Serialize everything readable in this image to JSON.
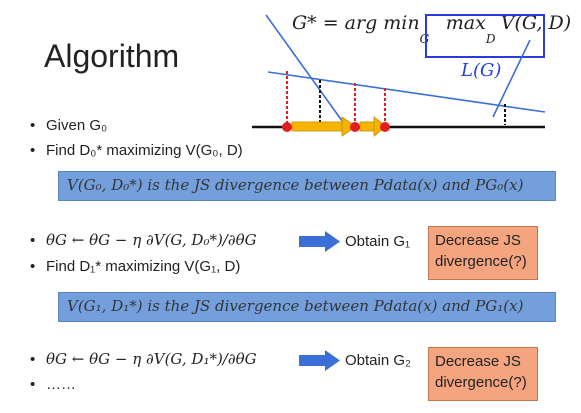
{
  "title": "Algorithm",
  "formula": {
    "left": "G* = arg min",
    "min_sub": "G",
    "max": "max",
    "max_sub": "D",
    "right": "V(G, D)"
  },
  "lg_label": "L(G)",
  "bullets": {
    "b1": "Given G₀",
    "b2": "Find D₀* maximizing V(G₀, D)",
    "b3": "θG ← θG − η ∂V(G, D₀*)/∂θG",
    "b3_result": "Obtain G₁",
    "b4": "Find D₁* maximizing V(G₁, D)",
    "b5": "θG ← θG − η ∂V(G, D₁*)/∂θG",
    "b5_result": "Obtain G₂",
    "b6": "……"
  },
  "notes": {
    "n1": "V(G₀, D₀*) is the JS divergence between Pdata(x) and PG₀(x)",
    "n2": "V(G₁, D₁*) is the JS divergence between Pdata(x) and PG₁(x)"
  },
  "callouts": {
    "c1_line1": "Decrease JS",
    "c1_line2": "divergence(?)",
    "c2_line1": "Decrease JS",
    "c2_line2": "divergence(?)"
  },
  "colors": {
    "accent_blue": "#2b3bd6",
    "note_blue": "#5b8fd8",
    "callout_orange": "#f4a47f",
    "arrow_yellow": "#f5b400",
    "point_red": "#e02020",
    "line_blue": "#3a6fd8"
  }
}
